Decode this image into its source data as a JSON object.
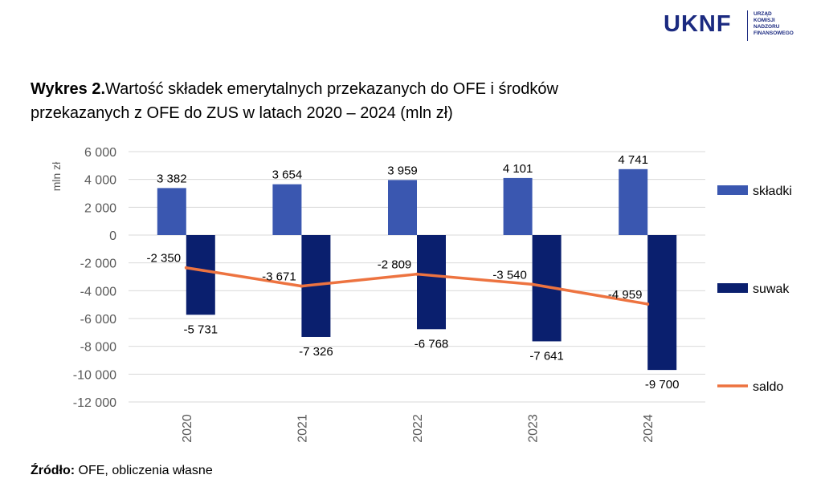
{
  "logo": {
    "wordmark": "UKNF",
    "subtitle_lines": [
      "URZĄD",
      "KOMISJI",
      "NADZORU",
      "FINANSOWEGO"
    ],
    "color": "#1b2a80"
  },
  "title": {
    "prefix": "Wykres 2.",
    "text": "Wartość składek emerytalnych przekazanych do OFE i środków przekazanych z OFE do ZUS w latach 2020 – 2024 (mln zł)"
  },
  "source": {
    "label": "Źródło:",
    "text": " OFE, obliczenia własne"
  },
  "chart_data": {
    "type": "bar",
    "ylabel": "mln zł",
    "ylim": [
      -12000,
      6000
    ],
    "yticks": [
      6000,
      4000,
      2000,
      0,
      -2000,
      -4000,
      -6000,
      -8000,
      -10000,
      -12000
    ],
    "ytick_labels": [
      "6 000",
      "4 000",
      "2 000",
      "0",
      "-2 000",
      "-4 000",
      "-6 000",
      "-8 000",
      "-10 000",
      "-12 000"
    ],
    "grid": true,
    "legend_position": "right",
    "categories": [
      "2020",
      "2021",
      "2022",
      "2023",
      "2024"
    ],
    "series": [
      {
        "name": "składki",
        "kind": "bar",
        "color": "#3a57b0",
        "values": [
          3382,
          3654,
          3959,
          4101,
          4741
        ],
        "labels": [
          "3 382",
          "3 654",
          "3 959",
          "4 101",
          "4 741"
        ]
      },
      {
        "name": "suwak",
        "kind": "bar",
        "color": "#0a1f6e",
        "values": [
          -5731,
          -7326,
          -6768,
          -7641,
          -9700
        ],
        "labels": [
          "-5 731",
          "-7 326",
          "-6 768",
          "-7 641",
          "-9 700"
        ]
      },
      {
        "name": "saldo",
        "kind": "line",
        "color": "#ed7340",
        "values": [
          -2350,
          -3671,
          -2809,
          -3540,
          -4959
        ],
        "labels": [
          "-2 350",
          "-3 671",
          "-2 809",
          "-3 540",
          "-4 959"
        ]
      }
    ]
  }
}
